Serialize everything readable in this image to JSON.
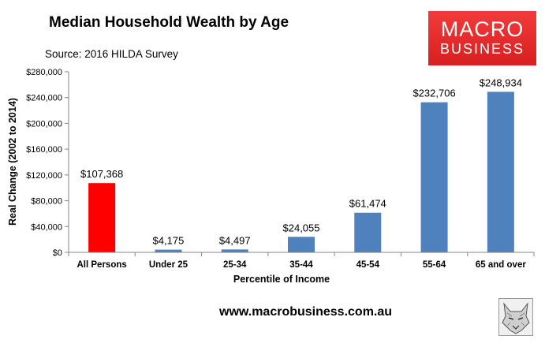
{
  "header": {
    "title": "Median Household Wealth by Age",
    "source": "Source: 2016 HILDA Survey"
  },
  "logo": {
    "line1": "MACRO",
    "line2": "BUSINESS"
  },
  "footer": {
    "website": "www.macrobusiness.com.au"
  },
  "chart_data": {
    "type": "bar",
    "title": "Median Household Wealth by Age",
    "xlabel": "Percentile of Income",
    "ylabel": "Real Change (2002 to 2014)",
    "categories": [
      "All Persons",
      "Under 25",
      "25-34",
      "35-44",
      "45-54",
      "55-64",
      "65 and over"
    ],
    "values": [
      107368,
      4175,
      4497,
      24055,
      61474,
      232706,
      248934
    ],
    "data_labels": [
      "$107,368",
      "$4,175",
      "$4,497",
      "$24,055",
      "$61,474",
      "$232,706",
      "$248,934"
    ],
    "ylim": [
      0,
      280000
    ],
    "yticks": [
      0,
      40000,
      80000,
      120000,
      160000,
      200000,
      240000,
      280000
    ],
    "ytick_labels": [
      "$0",
      "$40,000",
      "$80,000",
      "$120,000",
      "$160,000",
      "$200,000",
      "$240,000",
      "$280,000"
    ],
    "grid": false,
    "colors": {
      "highlight": "#ff0000",
      "default": "#4f81bd"
    },
    "highlight_index": 0
  }
}
